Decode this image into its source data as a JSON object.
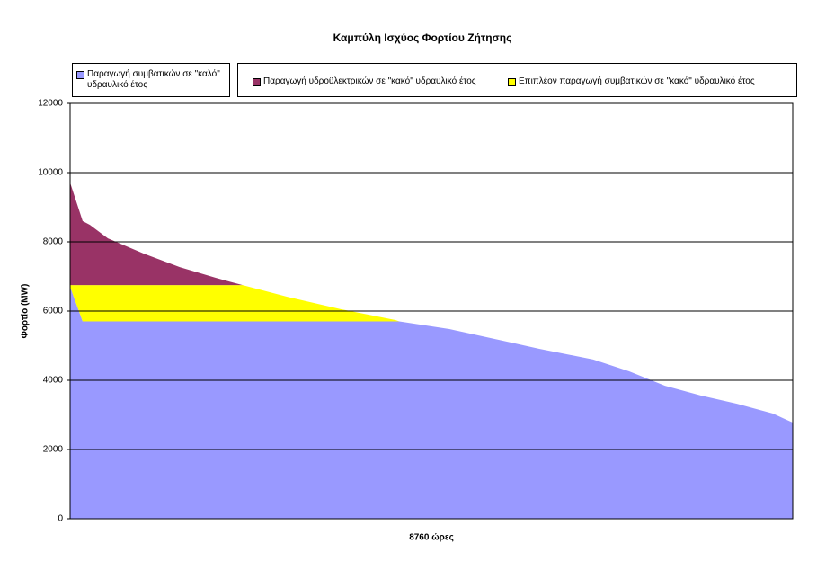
{
  "chart_data": {
    "type": "stacked_area",
    "title": "Καμπύλη Ισχύος Φορτίου Ζήτησης",
    "x_label": "8760 ώρες",
    "y_label": "Φορτίο (MW)",
    "x": [
      0,
      152,
      240,
      458,
      893,
      1329,
      1765,
      2092,
      2637,
      3291,
      3944,
      3990,
      4598,
      5252,
      5688,
      6341,
      6777,
      7212,
      7648,
      8084,
      8520,
      8683,
      8760
    ],
    "xlim": [
      0,
      8760
    ],
    "ylim": [
      0,
      12000
    ],
    "yticks": [
      0,
      2000,
      4000,
      6000,
      8000,
      10000,
      12000
    ],
    "grid": true,
    "series": [
      {
        "name": "Παραγωγή συμβατικών σε \"καλό\" υδραυλικό έτος",
        "color": "#9999ff",
        "values": [
          6700,
          5700,
          5700,
          5700,
          5700,
          5700,
          5700,
          5700,
          5700,
          5700,
          5700,
          5700,
          5480,
          5140,
          4910,
          4600,
          4260,
          3840,
          3560,
          3320,
          3040,
          2860,
          2780
        ]
      },
      {
        "name": "Επιπλέον παραγωγή συμβατικών σε \"κακό\" υδραυλικό έτος",
        "color": "#ffff00",
        "values": [
          50,
          1050,
          1050,
          1050,
          1050,
          1050,
          1050,
          1050,
          710,
          350,
          40,
          0,
          0,
          0,
          0,
          0,
          0,
          0,
          0,
          0,
          0,
          0,
          0
        ]
      },
      {
        "name": "Παραγωγή υδροϋλεκτρικών σε \"κακό\" υδραυλικό έτος",
        "color": "#993366",
        "values": [
          2960,
          1850,
          1740,
          1350,
          910,
          520,
          210,
          0,
          0,
          0,
          0,
          0,
          0,
          0,
          0,
          0,
          0,
          0,
          0,
          0,
          0,
          0,
          0
        ]
      }
    ]
  }
}
